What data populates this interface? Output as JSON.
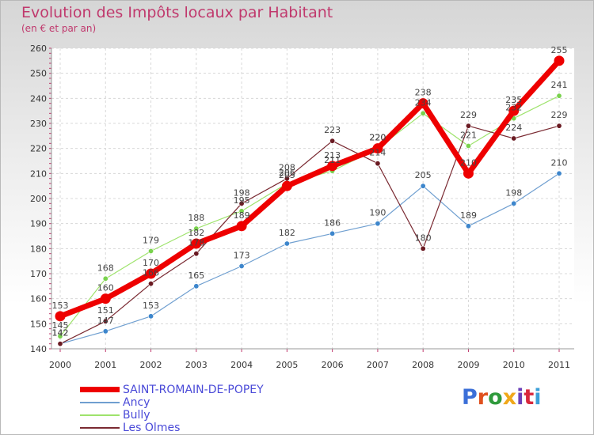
{
  "title": "Evolution des Impôts locaux par Habitant",
  "subtitle": "(en € et par an)",
  "brand": {
    "text": "Proxiti",
    "colors": [
      "#3b6fd8",
      "#e0501e",
      "#2f9a3c",
      "#f0a81a",
      "#6a3fb8",
      "#d8283c",
      "#3b9fd8"
    ]
  },
  "chart_data": {
    "type": "line",
    "categories": [
      "2000",
      "2001",
      "2002",
      "2003",
      "2004",
      "2005",
      "2006",
      "2007",
      "2008",
      "2009",
      "2010",
      "2011"
    ],
    "ylim": [
      140,
      260
    ],
    "yticks": [
      140,
      150,
      160,
      170,
      180,
      190,
      200,
      210,
      220,
      230,
      240,
      250,
      260
    ],
    "xlabel": "",
    "ylabel": "",
    "series": [
      {
        "name": "Ancy",
        "color": "#6f9fd0",
        "marker": "#3d86cc",
        "width": 1.2,
        "values": [
          142,
          147,
          153,
          165,
          173,
          182,
          186,
          190,
          205,
          189,
          198,
          210
        ]
      },
      {
        "name": "Bully",
        "color": "#9ee36c",
        "marker": "#79d24d",
        "width": 1.2,
        "values": [
          145,
          168,
          179,
          188,
          195,
          206,
          211,
          220,
          234,
          221,
          232,
          241
        ]
      },
      {
        "name": "Les Olmes",
        "color": "#7a2a32",
        "marker": "#6a1a22",
        "width": 1.2,
        "values": [
          142,
          151,
          166,
          178,
          198,
          208,
          223,
          214,
          180,
          229,
          224,
          229
        ]
      },
      {
        "name": "SAINT-ROMAIN-DE-POPEY",
        "color": "#ee0000",
        "marker": "#ee0000",
        "width": 7,
        "values": [
          153,
          160,
          170,
          182,
          189,
          205,
          213,
          220,
          238,
          210,
          235,
          255
        ]
      }
    ],
    "legend": [
      "SAINT-ROMAIN-DE-POPEY",
      "Ancy",
      "Bully",
      "Les Olmes"
    ]
  }
}
